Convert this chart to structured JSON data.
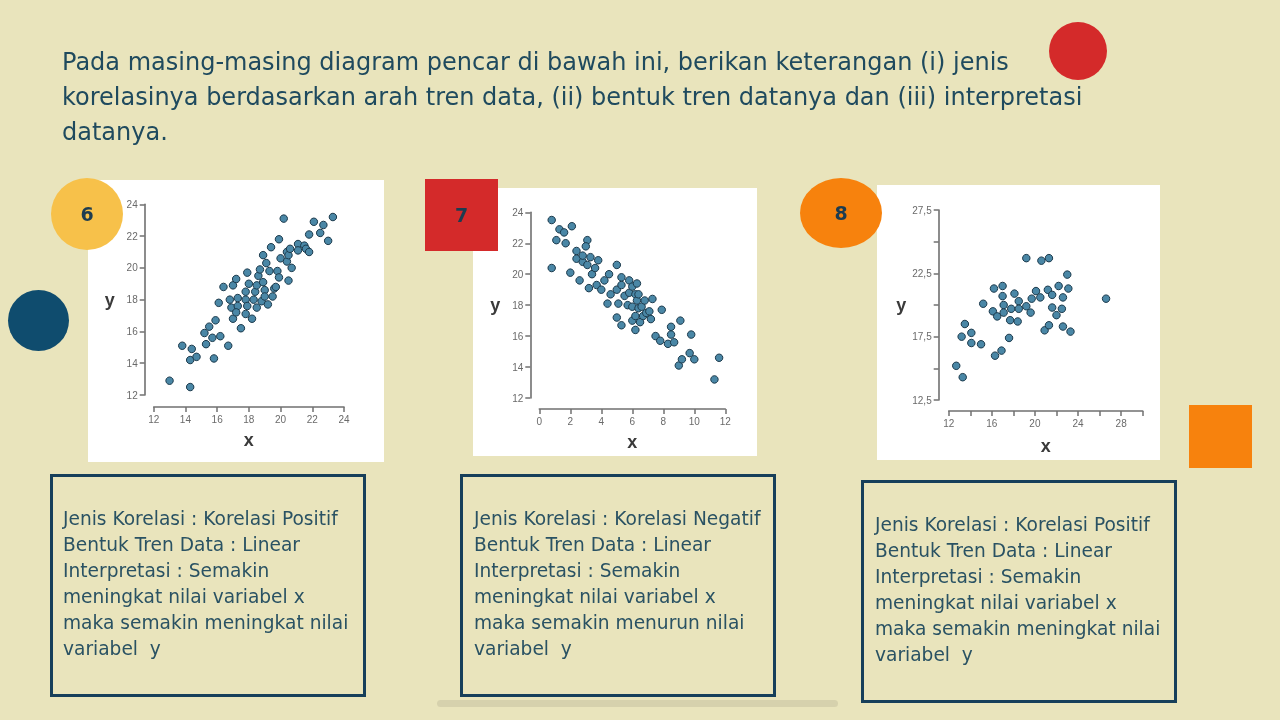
{
  "chart_data": [
    {
      "type": "other",
      "title": "Pada masing-masing diagram pencar di bawah ini, berikan keterangan (i) jenis korelasinya berdasarkan arah tren data, (ii) bentuk tren datanya dan (iii) interpretasi datanya."
    },
    {
      "type": "scatter",
      "title": "6",
      "xlabel": "x",
      "ylabel": "y",
      "color": "#4a87a6",
      "marker": "circle",
      "x": [
        13.0,
        13.8,
        14.3,
        14.4,
        14.3,
        14.7,
        15.8,
        15.2,
        15.3,
        15.5,
        15.7,
        15.9,
        16.2,
        16.1,
        16.7,
        16.4,
        17.0,
        17.2,
        16.8,
        16.9,
        17.0,
        17.3,
        17.3,
        17.2,
        17.5,
        17.8,
        17.8,
        17.9,
        18.0,
        17.9,
        17.8,
        18.2,
        18.3,
        18.4,
        18.5,
        18.5,
        18.6,
        18.7,
        18.8,
        18.9,
        18.9,
        19.1,
        19.0,
        19.0,
        19.2,
        19.3,
        19.4,
        19.5,
        19.6,
        19.7,
        19.8,
        19.9,
        19.9,
        20.0,
        20.2,
        20.4,
        20.4,
        20.5,
        20.5,
        20.6,
        20.7,
        21.1,
        21.1,
        21.5,
        21.6,
        21.8,
        21.8,
        22.1,
        22.5,
        22.7,
        23.0,
        23.3
      ],
      "values": [
        12.9,
        15.1,
        12.5,
        14.9,
        14.2,
        14.4,
        14.3,
        15.9,
        15.2,
        16.3,
        15.6,
        16.7,
        15.7,
        17.8,
        15.1,
        18.8,
        18.9,
        19.3,
        18.0,
        17.5,
        16.8,
        18.1,
        17.6,
        17.2,
        16.2,
        18.0,
        18.5,
        19.7,
        19.0,
        17.6,
        17.1,
        16.8,
        18.0,
        18.5,
        18.9,
        17.5,
        19.5,
        19.9,
        17.9,
        19.1,
        20.8,
        20.3,
        18.6,
        18.2,
        17.7,
        19.8,
        21.3,
        18.2,
        18.7,
        18.8,
        19.8,
        21.8,
        19.4,
        20.6,
        23.1,
        21.0,
        20.4,
        19.2,
        20.8,
        21.2,
        20.0,
        21.5,
        21.1,
        21.4,
        21.2,
        21.0,
        22.1,
        22.9,
        22.2,
        22.7,
        21.7,
        23.2
      ],
      "xlim": [
        12,
        24
      ],
      "xticks": [
        12,
        14,
        16,
        18,
        20,
        22,
        24
      ],
      "ylim": [
        12,
        24
      ],
      "yticks": [
        12,
        14,
        16,
        18,
        20,
        22,
        24
      ],
      "annotations": [
        "Jenis Korelasi : Korelasi Positif",
        "Bentuk Tren Data : Linear",
        "Interpretasi : Semakin meningkat nilai variabel x maka semakin meningkat nilai variabel  y"
      ]
    },
    {
      "type": "scatter",
      "title": "7",
      "xlabel": "x",
      "ylabel": "y",
      "color": "#4a87a6",
      "marker": "circle",
      "x": [
        0.8,
        0.8,
        1.1,
        1.3,
        1.6,
        1.7,
        2.1,
        2.0,
        2.6,
        2.4,
        2.4,
        2.8,
        2.8,
        3.1,
        3.0,
        3.1,
        3.2,
        3.3,
        3.4,
        3.6,
        3.8,
        3.7,
        4.0,
        4.2,
        4.5,
        4.4,
        4.6,
        5.0,
        5.0,
        5.0,
        5.1,
        5.3,
        5.3,
        5.3,
        5.5,
        5.7,
        5.8,
        5.8,
        6.0,
        6.0,
        6.0,
        6.2,
        6.3,
        6.2,
        6.2,
        6.3,
        6.4,
        6.5,
        6.4,
        6.6,
        6.7,
        6.8,
        6.9,
        7.1,
        7.2,
        7.3,
        7.5,
        7.9,
        7.8,
        8.3,
        8.5,
        8.5,
        8.7,
        9.1,
        9.0,
        9.2,
        9.7,
        9.8,
        10.0,
        11.3,
        11.6
      ],
      "values": [
        23.5,
        20.4,
        22.2,
        22.9,
        22.7,
        22.0,
        23.1,
        20.1,
        19.6,
        21.5,
        21.0,
        20.8,
        21.2,
        22.2,
        21.8,
        20.6,
        19.1,
        21.1,
        20.0,
        20.4,
        20.9,
        19.3,
        19.0,
        19.6,
        20.0,
        18.1,
        18.7,
        20.6,
        19.0,
        17.2,
        18.1,
        16.7,
        19.3,
        19.8,
        18.6,
        18.0,
        19.6,
        18.8,
        19.2,
        17.0,
        17.9,
        18.7,
        19.4,
        16.4,
        17.3,
        18.3,
        17.8,
        16.9,
        18.7,
        17.9,
        17.3,
        18.3,
        17.5,
        17.6,
        17.1,
        18.4,
        16.0,
        17.7,
        15.7,
        15.5,
        16.6,
        16.1,
        15.6,
        17.0,
        14.1,
        14.5,
        14.9,
        16.1,
        14.5,
        13.2,
        14.6
      ],
      "xlim": [
        0,
        12
      ],
      "xticks": [
        0,
        2,
        4,
        6,
        8,
        10,
        12
      ],
      "ylim": [
        12,
        24
      ],
      "yticks": [
        12,
        14,
        16,
        18,
        20,
        22,
        24
      ],
      "annotations": [
        "Jenis Korelasi : Korelasi Negatif",
        "Bentuk Tren Data : Linear",
        "Interpretasi : Semakin meningkat nilai variabel x maka semakin menurun nilai variabel  y"
      ]
    },
    {
      "type": "scatter",
      "title": "8",
      "xlabel": "x",
      "ylabel": "y",
      "color": "#4a87a6",
      "marker": "circle",
      "x": [
        12.7,
        13.3,
        13.2,
        13.5,
        14.1,
        14.1,
        15.0,
        15.2,
        16.1,
        16.2,
        16.3,
        16.5,
        16.9,
        17.0,
        17.0,
        17.1,
        17.1,
        17.6,
        17.7,
        17.8,
        18.1,
        18.4,
        18.5,
        18.5,
        19.2,
        19.2,
        19.6,
        19.7,
        20.1,
        20.5,
        20.6,
        20.9,
        21.2,
        21.3,
        21.3,
        21.6,
        21.6,
        22.0,
        22.2,
        22.5,
        22.6,
        22.6,
        23.0,
        23.1,
        23.3,
        26.6
      ],
      "values": [
        15.2,
        14.3,
        17.5,
        18.5,
        17.8,
        17.0,
        16.9,
        20.1,
        19.5,
        21.3,
        16.0,
        19.1,
        16.4,
        21.5,
        20.7,
        20.0,
        19.4,
        17.4,
        18.8,
        19.7,
        20.9,
        18.7,
        20.3,
        19.7,
        19.9,
        23.7,
        19.4,
        20.5,
        21.1,
        20.6,
        23.5,
        18.0,
        21.2,
        23.7,
        18.4,
        20.8,
        19.8,
        19.2,
        21.5,
        19.7,
        20.6,
        18.3,
        22.4,
        21.3,
        17.9,
        20.5
      ],
      "xlim": [
        12,
        30
      ],
      "xticks": [
        12,
        {
          "value": 14,
          "label": null
        },
        16,
        {
          "value": 18,
          "label": null
        },
        20,
        {
          "value": 22,
          "label": null
        },
        24,
        {
          "value": 26,
          "label": null
        },
        28,
        {
          "value": 30,
          "label": null
        }
      ],
      "ylim": [
        12.5,
        27.5
      ],
      "yticks": [
        {
          "value": 12.5,
          "label": "12,5"
        },
        {
          "value": 15,
          "label": null
        },
        {
          "value": 17.5,
          "label": "17,5"
        },
        {
          "value": 20,
          "label": null
        },
        {
          "value": 22.5,
          "label": "22,5"
        },
        {
          "value": 25,
          "label": null
        },
        {
          "value": 27.5,
          "label": "27,5"
        }
      ],
      "annotations": [
        "Jenis Korelasi : Korelasi Positif",
        "Bentuk Tren Data : Linear",
        "Interpretasi : Semakin meningkat nilai variabel x maka semakin meningkat nilai variabel  y"
      ]
    }
  ]
}
